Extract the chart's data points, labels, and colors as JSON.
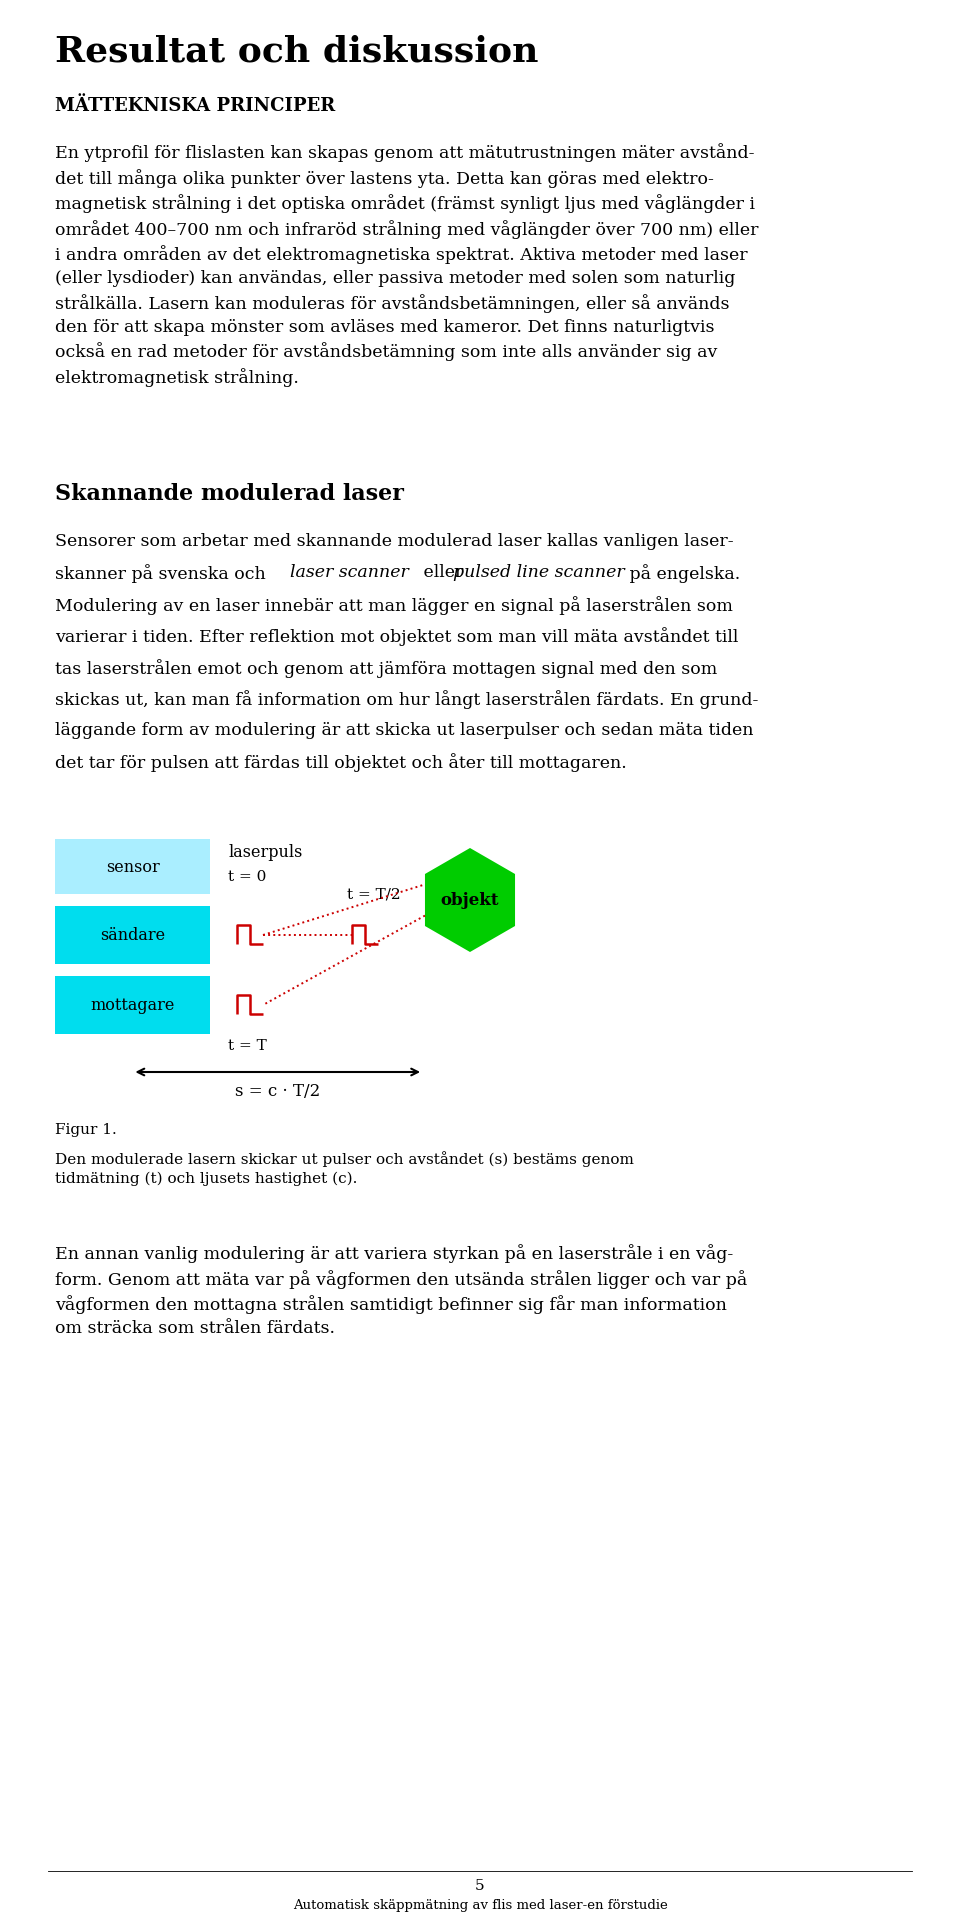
{
  "title": "Resultat och diskussion",
  "subtitle": "MÄTTEKNISKA PRINCIPER",
  "section2": "Skannande modulerad laser",
  "fig_label": "Figur 1.",
  "fig_caption": "Den modulerade lasern skickar ut pulser och avståndet (s) bestäms genom\ntidmätning (t) och ljusets hastighet (c).",
  "page_num": "5",
  "footer": "Automatisk skäppmätning av flis med laser-en förstudie",
  "bg_color": "#ffffff",
  "text_color": "#000000",
  "light_cyan": "#aaeeff",
  "cyan_color": "#00ddee",
  "green_color": "#00cc00",
  "red_color": "#cc0000"
}
